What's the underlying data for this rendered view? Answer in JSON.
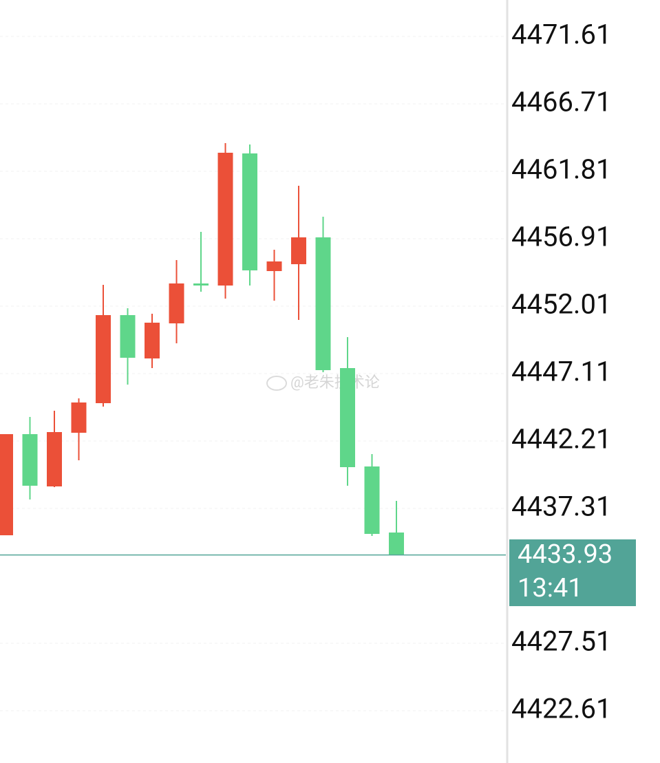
{
  "chart_data": {
    "type": "candlestick",
    "candles": [
      {
        "open": 4435.36,
        "high": 4442.71,
        "low": 4435.36,
        "close": 4442.71
      },
      {
        "open": 4442.71,
        "high": 4443.96,
        "low": 4437.96,
        "close": 4438.96
      },
      {
        "open": 4438.91,
        "high": 4444.41,
        "low": 4438.86,
        "close": 4442.86
      },
      {
        "open": 4442.81,
        "high": 4445.31,
        "low": 4440.81,
        "close": 4445.01
      },
      {
        "open": 4444.96,
        "high": 4453.56,
        "low": 4444.71,
        "close": 4451.36
      },
      {
        "open": 4451.36,
        "high": 4451.86,
        "low": 4446.31,
        "close": 4448.26
      },
      {
        "open": 4448.21,
        "high": 4451.46,
        "low": 4447.51,
        "close": 4450.81
      },
      {
        "open": 4450.76,
        "high": 4455.36,
        "low": 4449.31,
        "close": 4453.66
      },
      {
        "open": 4453.66,
        "high": 4457.41,
        "low": 4453.06,
        "close": 4453.51
      },
      {
        "open": 4453.51,
        "high": 4463.86,
        "low": 4452.56,
        "close": 4463.16
      },
      {
        "open": 4463.11,
        "high": 4463.76,
        "low": 4453.51,
        "close": 4454.61
      },
      {
        "open": 4454.56,
        "high": 4456.11,
        "low": 4452.41,
        "close": 4455.26
      },
      {
        "open": 4455.06,
        "high": 4460.76,
        "low": 4451.01,
        "close": 4457.01
      },
      {
        "open": 4457.01,
        "high": 4458.51,
        "low": 4447.21,
        "close": 4447.36
      },
      {
        "open": 4447.51,
        "high": 4449.76,
        "low": 4438.96,
        "close": 4440.31
      },
      {
        "open": 4440.36,
        "high": 4441.26,
        "low": 4435.31,
        "close": 4435.46
      },
      {
        "open": 4435.56,
        "high": 4437.86,
        "low": 4433.93,
        "close": 4433.93
      }
    ],
    "up_color": "#eb5038",
    "down_color": "#5fd68a",
    "ylim": [
      4418.81,
      4474.26
    ],
    "yticks": [
      4471.61,
      4466.71,
      4461.81,
      4456.91,
      4452.01,
      4447.11,
      4442.21,
      4437.31,
      4427.51,
      4422.61
    ],
    "grid": true,
    "last_price": {
      "value": 4433.93,
      "time": "13:41",
      "color": "#52a497"
    },
    "watermark": "@老朱技术论"
  }
}
